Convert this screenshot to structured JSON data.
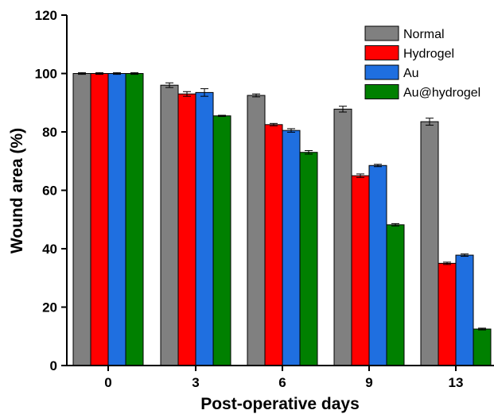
{
  "chart_data": {
    "type": "bar",
    "title": "",
    "xlabel": "Post-operative days",
    "ylabel": "Wound area (%)",
    "categories": [
      "0",
      "3",
      "6",
      "9",
      "13"
    ],
    "ylim": [
      0,
      120
    ],
    "yticks": [
      "0",
      "20",
      "40",
      "60",
      "80",
      "100",
      "120"
    ],
    "grid": false,
    "legend_position": "top-right",
    "series": [
      {
        "name": "Normal",
        "color": "#808080",
        "values": [
          100,
          96,
          92.5,
          87.8,
          83.5
        ],
        "errors": [
          0.3,
          0.8,
          0.5,
          1.0,
          1.2
        ]
      },
      {
        "name": "Hydrogel",
        "color": "#ff0000",
        "values": [
          100,
          93,
          82.5,
          65,
          35
        ],
        "errors": [
          0.3,
          0.8,
          0.4,
          0.6,
          0.4
        ]
      },
      {
        "name": "Au",
        "color": "#1f6fe0",
        "values": [
          100,
          93.5,
          80.5,
          68.5,
          37.8
        ],
        "errors": [
          0.3,
          1.3,
          0.6,
          0.4,
          0.4
        ]
      },
      {
        "name": "Au@hydrogel",
        "color": "#008000",
        "values": [
          100,
          85.5,
          73,
          48.2,
          12.5
        ],
        "errors": [
          0.3,
          0.2,
          0.6,
          0.4,
          0.3
        ]
      }
    ]
  }
}
